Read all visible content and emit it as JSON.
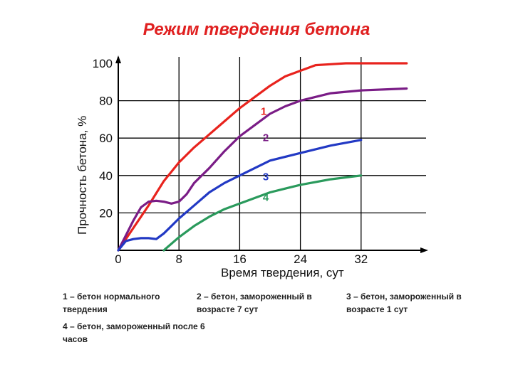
{
  "chart_data": {
    "type": "line",
    "title": "Режим твердения бетона",
    "xlabel": "Время твердения, сут",
    "ylabel": "Прочность бетона, %",
    "xlim": [
      0,
      40
    ],
    "ylim": [
      0,
      100
    ],
    "x_ticks": [
      "0",
      "8",
      "16",
      "24",
      "32"
    ],
    "y_ticks": [
      "20",
      "40",
      "60",
      "80",
      "100"
    ],
    "grid": true,
    "series": [
      {
        "name": "1",
        "color": "#e8231d",
        "x": [
          0,
          2,
          4,
          6,
          8,
          10,
          12,
          14,
          16,
          18,
          20,
          22,
          24,
          26,
          28,
          30,
          32,
          36,
          38
        ],
        "y": [
          0,
          12,
          24,
          37,
          47,
          55,
          62,
          69,
          76,
          82,
          88,
          93,
          96,
          99,
          99.5,
          100,
          100,
          100,
          100
        ]
      },
      {
        "name": "2",
        "color": "#7a1c86",
        "x": [
          0,
          1,
          2,
          3,
          4,
          5,
          6,
          7,
          8,
          9,
          10,
          12,
          14,
          16,
          18,
          20,
          22,
          24,
          28,
          32,
          38
        ],
        "y": [
          0,
          8,
          16,
          23,
          26,
          26.5,
          26,
          25,
          26,
          30,
          36,
          44,
          53,
          61,
          67,
          73,
          77,
          80,
          84,
          85.5,
          86.5
        ]
      },
      {
        "name": "3",
        "color": "#2239c4",
        "x": [
          0,
          1,
          2,
          3,
          4,
          5,
          6,
          7,
          8,
          10,
          12,
          14,
          16,
          18,
          20,
          24,
          28,
          32
        ],
        "y": [
          0,
          5,
          6,
          6.5,
          6.5,
          6,
          9,
          13,
          17,
          24,
          31,
          36,
          40,
          44,
          48,
          52,
          56,
          59
        ]
      },
      {
        "name": "4",
        "color": "#2a9a5c",
        "x": [
          6,
          8,
          10,
          12,
          14,
          16,
          18,
          20,
          22,
          24,
          28,
          32
        ],
        "y": [
          0,
          7,
          13,
          18,
          22,
          25,
          28,
          31,
          33,
          35,
          38,
          40
        ]
      }
    ],
    "legend": [
      "1 – бетон нормального твердения",
      "2 – бетон, замороженный в возрасте 7 сут",
      "3 – бетон, замороженный в возрасте 1 сут",
      "4 – бетон, замороженный после 6 часов"
    ]
  }
}
